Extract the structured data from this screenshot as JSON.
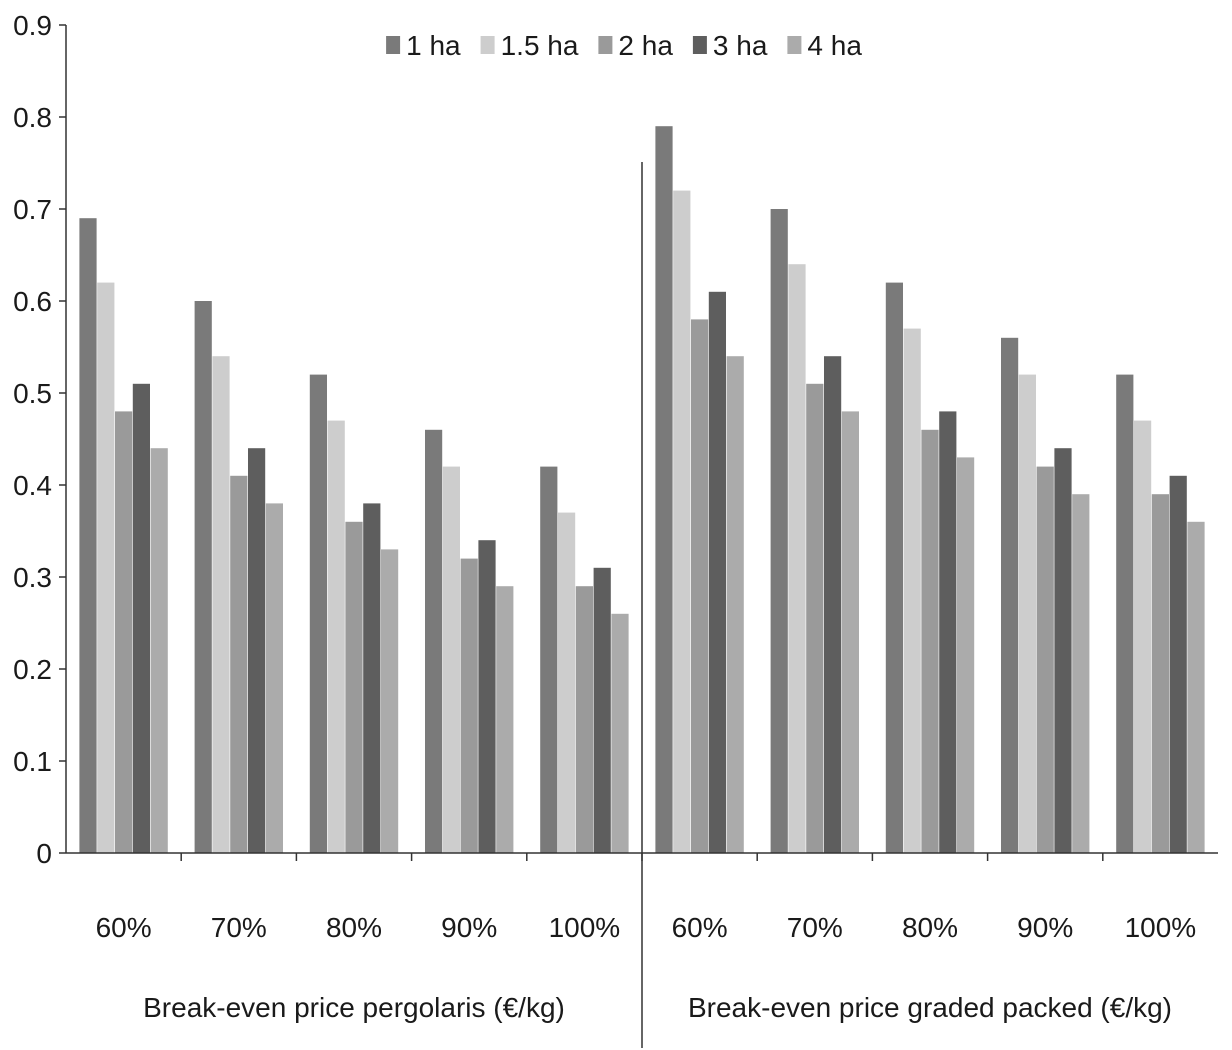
{
  "chart_data": {
    "type": "bar",
    "title": "",
    "xlabel": "",
    "ylabel": "",
    "ylim": [
      0,
      0.9
    ],
    "yticks": [
      "0",
      "0.1",
      "0.2",
      "0.3",
      "0.4",
      "0.5",
      "0.6",
      "0.7",
      "0.8",
      "0.9"
    ],
    "grid": false,
    "legend_position": "top-center",
    "groups": [
      {
        "label": "Break-even price pergolaris (€/kg)",
        "categories": [
          "60%",
          "70%",
          "80%",
          "90%",
          "100%"
        ]
      },
      {
        "label": "Break-even price graded packed (€/kg)",
        "categories": [
          "60%",
          "70%",
          "80%",
          "90%",
          "100%"
        ]
      }
    ],
    "categories": [
      "60%",
      "70%",
      "80%",
      "90%",
      "100%",
      "60%",
      "70%",
      "80%",
      "90%",
      "100%"
    ],
    "series": [
      {
        "name": "1 ha",
        "color": "#7a7a7a",
        "values": [
          0.69,
          0.6,
          0.52,
          0.46,
          0.42,
          0.79,
          0.7,
          0.62,
          0.56,
          0.52
        ]
      },
      {
        "name": "1.5 ha",
        "color": "#cdcdcd",
        "values": [
          0.62,
          0.54,
          0.47,
          0.42,
          0.37,
          0.72,
          0.64,
          0.57,
          0.52,
          0.47
        ]
      },
      {
        "name": "2 ha",
        "color": "#9a9a9a",
        "values": [
          0.48,
          0.41,
          0.36,
          0.32,
          0.29,
          0.58,
          0.51,
          0.46,
          0.42,
          0.39
        ]
      },
      {
        "name": "3 ha",
        "color": "#5e5e5e",
        "values": [
          0.51,
          0.44,
          0.38,
          0.34,
          0.31,
          0.61,
          0.54,
          0.48,
          0.44,
          0.41
        ]
      },
      {
        "name": "4 ha",
        "color": "#ababab",
        "values": [
          0.44,
          0.38,
          0.33,
          0.29,
          0.26,
          0.54,
          0.48,
          0.43,
          0.39,
          0.36
        ]
      }
    ]
  }
}
